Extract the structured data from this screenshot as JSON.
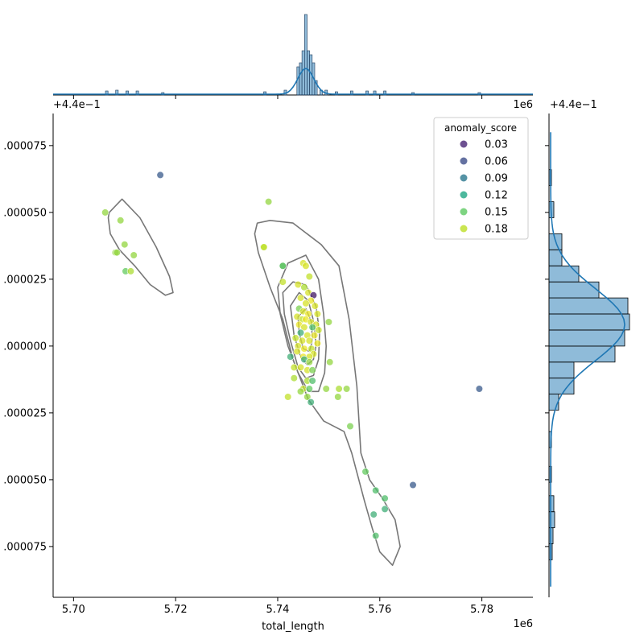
{
  "chart_data": {
    "type": "scatter",
    "xlabel": "total_length",
    "ylabel": "",
    "x_offset_label": "1e6",
    "y_offset_label": "+4.4e−1",
    "xlim": [
      5.696,
      5.79
    ],
    "ylim": [
      -9.4e-05,
      8.7e-05
    ],
    "x_ticks": [
      5.7,
      5.72,
      5.74,
      5.76,
      5.78
    ],
    "x_tick_labels": [
      "5.70",
      "5.72",
      "5.74",
      "5.76",
      "5.78"
    ],
    "y_ticks": [
      7.5e-05,
      5e-05,
      2.5e-05,
      0.0,
      -2.5e-05,
      -5e-05,
      -7.5e-05
    ],
    "y_tick_labels": [
      ".000075",
      ".000050",
      ".000025",
      ".000000",
      ".000025",
      ".000050",
      ".000075"
    ],
    "legend": {
      "title": "anomaly_score",
      "placement": "top-right",
      "entries": [
        "0.03",
        "0.06",
        "0.09",
        "0.12",
        "0.15",
        "0.18"
      ],
      "colors": [
        "#482576",
        "#3d4e8a",
        "#2a788e",
        "#21a685",
        "#5ec962",
        "#bddf26"
      ]
    },
    "grid": false,
    "marginal_x": {
      "type": "histogram+kde",
      "note": "dense spike near 5.745, sparse tails",
      "bins": [
        [
          5.7065,
          0.05
        ],
        [
          5.7085,
          0.06
        ],
        [
          5.7105,
          0.05
        ],
        [
          5.7125,
          0.05
        ],
        [
          5.7175,
          0.03
        ],
        [
          5.7375,
          0.04
        ],
        [
          5.7415,
          0.06
        ],
        [
          5.744,
          0.35
        ],
        [
          5.7445,
          0.4
        ],
        [
          5.745,
          0.55
        ],
        [
          5.7455,
          1.0
        ],
        [
          5.746,
          0.55
        ],
        [
          5.7465,
          0.5
        ],
        [
          5.747,
          0.4
        ],
        [
          5.7475,
          0.18
        ],
        [
          5.7485,
          0.06
        ],
        [
          5.7495,
          0.06
        ],
        [
          5.7515,
          0.04
        ],
        [
          5.7545,
          0.05
        ],
        [
          5.7575,
          0.05
        ],
        [
          5.759,
          0.05
        ],
        [
          5.761,
          0.05
        ],
        [
          5.7665,
          0.03
        ],
        [
          5.7795,
          0.03
        ]
      ]
    },
    "marginal_y": {
      "type": "histogram+kde",
      "bins": [
        [
          -7.7e-05,
          0.04
        ],
        [
          -7.1e-05,
          0.05
        ],
        [
          -6.5e-05,
          0.07
        ],
        [
          -5.9e-05,
          0.06
        ],
        [
          -4.8e-05,
          0.03
        ],
        [
          -3.5e-05,
          0.03
        ],
        [
          -2.1e-05,
          0.12
        ],
        [
          -1.5e-05,
          0.31
        ],
        [
          -9e-06,
          0.31
        ],
        [
          -3e-06,
          0.82
        ],
        [
          3e-06,
          0.94
        ],
        [
          9e-06,
          1.0
        ],
        [
          1.5e-05,
          0.98
        ],
        [
          2.1e-05,
          0.62
        ],
        [
          2.7e-05,
          0.37
        ],
        [
          3.3e-05,
          0.16
        ],
        [
          3.9e-05,
          0.16
        ],
        [
          5.1e-05,
          0.06
        ],
        [
          6.3e-05,
          0.03
        ]
      ]
    },
    "kde_contours": [
      [
        [
          5.707,
          5e-05
        ],
        [
          5.7095,
          5.5e-05
        ],
        [
          5.713,
          4.8e-05
        ],
        [
          5.7162,
          3.7e-05
        ],
        [
          5.7188,
          2.6e-05
        ],
        [
          5.7195,
          2e-05
        ],
        [
          5.718,
          1.9e-05
        ],
        [
          5.715,
          2.3e-05
        ],
        [
          5.712,
          3e-05
        ],
        [
          5.709,
          3.6e-05
        ],
        [
          5.7072,
          4.2e-05
        ],
        [
          5.7068,
          4.8e-05
        ]
      ],
      [
        [
          5.7355,
          4.2e-05
        ],
        [
          5.736,
          4.6e-05
        ],
        [
          5.7385,
          4.7e-05
        ],
        [
          5.743,
          4.6e-05
        ],
        [
          5.7485,
          3.8e-05
        ],
        [
          5.752,
          3e-05
        ],
        [
          5.754,
          1e-05
        ],
        [
          5.7555,
          -1.5e-05
        ],
        [
          5.7563,
          -4e-05
        ],
        [
          5.758,
          -5e-05
        ],
        [
          5.7605,
          -5.7e-05
        ],
        [
          5.763,
          -6.5e-05
        ],
        [
          5.764,
          -7.5e-05
        ],
        [
          5.7625,
          -8.2e-05
        ],
        [
          5.76,
          -7.7e-05
        ],
        [
          5.7585,
          -6.8e-05
        ],
        [
          5.757,
          -5.8e-05
        ],
        [
          5.7545,
          -4e-05
        ],
        [
          5.753,
          -3.2e-05
        ],
        [
          5.749,
          -2.8e-05
        ],
        [
          5.746,
          -2e-05
        ],
        [
          5.743,
          -5e-06
        ],
        [
          5.741,
          1e-05
        ],
        [
          5.7385,
          2.2e-05
        ],
        [
          5.7362,
          3.5e-05
        ]
      ],
      [
        [
          5.74,
          2.2e-05
        ],
        [
          5.742,
          3.1e-05
        ],
        [
          5.7455,
          3.4e-05
        ],
        [
          5.748,
          2.5e-05
        ],
        [
          5.749,
          1.2e-05
        ],
        [
          5.7495,
          0.0
        ],
        [
          5.7492,
          -1e-05
        ],
        [
          5.748,
          -1.7e-05
        ],
        [
          5.746,
          -1.7e-05
        ],
        [
          5.744,
          -1e-05
        ],
        [
          5.742,
          0.0
        ],
        [
          5.7405,
          1.2e-05
        ]
      ],
      [
        [
          5.741,
          2e-05
        ],
        [
          5.743,
          2.4e-05
        ],
        [
          5.7455,
          2.3e-05
        ],
        [
          5.7475,
          1.5e-05
        ],
        [
          5.7482,
          5e-06
        ],
        [
          5.748,
          -5e-06
        ],
        [
          5.747,
          -1.1e-05
        ],
        [
          5.7455,
          -1.2e-05
        ],
        [
          5.744,
          -8e-06
        ],
        [
          5.7425,
          2e-06
        ],
        [
          5.7413,
          1.2e-05
        ]
      ],
      [
        [
          5.7425,
          1.5e-05
        ],
        [
          5.7442,
          2e-05
        ],
        [
          5.746,
          1.7e-05
        ],
        [
          5.7472,
          8e-06
        ],
        [
          5.7475,
          0.0
        ],
        [
          5.747,
          -5e-06
        ],
        [
          5.7458,
          -7e-06
        ],
        [
          5.7445,
          -4e-06
        ],
        [
          5.7432,
          4e-06
        ]
      ],
      [
        [
          5.744,
          1.1e-05
        ],
        [
          5.7455,
          1.4e-05
        ],
        [
          5.7466,
          9e-06
        ],
        [
          5.7468,
          2e-06
        ],
        [
          5.7462,
          -2e-06
        ],
        [
          5.745,
          -1e-06
        ],
        [
          5.7442,
          5e-06
        ]
      ]
    ],
    "points": [
      {
        "x": 5.7062,
        "y": 5e-05,
        "s": 0.15
      },
      {
        "x": 5.7092,
        "y": 4.7e-05,
        "s": 0.15
      },
      {
        "x": 5.71,
        "y": 3.8e-05,
        "s": 0.15
      },
      {
        "x": 5.7082,
        "y": 3.5e-05,
        "s": 0.15
      },
      {
        "x": 5.7085,
        "y": 3.5e-05,
        "s": 0.15
      },
      {
        "x": 5.7118,
        "y": 3.4e-05,
        "s": 0.15
      },
      {
        "x": 5.7102,
        "y": 2.8e-05,
        "s": 0.13
      },
      {
        "x": 5.7112,
        "y": 2.8e-05,
        "s": 0.16
      },
      {
        "x": 5.717,
        "y": 6.4e-05,
        "s": 0.06
      },
      {
        "x": 5.7382,
        "y": 5.4e-05,
        "s": 0.15
      },
      {
        "x": 5.7372,
        "y": 3.7e-05,
        "s": 0.16
      },
      {
        "x": 5.7373,
        "y": 3.7e-05,
        "s": 0.17
      },
      {
        "x": 5.741,
        "y": 3e-05,
        "s": 0.15
      },
      {
        "x": 5.741,
        "y": 2.4e-05,
        "s": 0.17
      },
      {
        "x": 5.741,
        "y": 3e-05,
        "s": 0.12
      },
      {
        "x": 5.745,
        "y": 3.1e-05,
        "s": 0.18
      },
      {
        "x": 5.7455,
        "y": 3e-05,
        "s": 0.18
      },
      {
        "x": 5.7462,
        "y": 2.6e-05,
        "s": 0.17
      },
      {
        "x": 5.744,
        "y": 2.3e-05,
        "s": 0.18
      },
      {
        "x": 5.7452,
        "y": 2.2e-05,
        "s": 0.16
      },
      {
        "x": 5.746,
        "y": 2e-05,
        "s": 0.18
      },
      {
        "x": 5.747,
        "y": 1.9e-05,
        "s": 0.03
      },
      {
        "x": 5.7445,
        "y": 1.8e-05,
        "s": 0.18
      },
      {
        "x": 5.7465,
        "y": 1.7e-05,
        "s": 0.19
      },
      {
        "x": 5.7455,
        "y": 1.6e-05,
        "s": 0.18
      },
      {
        "x": 5.7473,
        "y": 1.5e-05,
        "s": 0.18
      },
      {
        "x": 5.7442,
        "y": 1.4e-05,
        "s": 0.14
      },
      {
        "x": 5.745,
        "y": 1.3e-05,
        "s": 0.18
      },
      {
        "x": 5.746,
        "y": 1.2e-05,
        "s": 0.19
      },
      {
        "x": 5.7478,
        "y": 1.2e-05,
        "s": 0.18
      },
      {
        "x": 5.7438,
        "y": 1.1e-05,
        "s": 0.18
      },
      {
        "x": 5.7448,
        "y": 1e-05,
        "s": 0.17
      },
      {
        "x": 5.7455,
        "y": 1e-05,
        "s": 0.19
      },
      {
        "x": 5.7465,
        "y": 9e-06,
        "s": 0.18
      },
      {
        "x": 5.7475,
        "y": 8e-06,
        "s": 0.18
      },
      {
        "x": 5.75,
        "y": 9e-06,
        "s": 0.15
      },
      {
        "x": 5.7442,
        "y": 8e-06,
        "s": 0.19
      },
      {
        "x": 5.7452,
        "y": 7e-06,
        "s": 0.18
      },
      {
        "x": 5.7468,
        "y": 7e-06,
        "s": 0.12
      },
      {
        "x": 5.748,
        "y": 6e-06,
        "s": 0.17
      },
      {
        "x": 5.7445,
        "y": 5e-06,
        "s": 0.11
      },
      {
        "x": 5.7458,
        "y": 4e-06,
        "s": 0.18
      },
      {
        "x": 5.7472,
        "y": 4e-06,
        "s": 0.19
      },
      {
        "x": 5.7435,
        "y": 3e-06,
        "s": 0.17
      },
      {
        "x": 5.7448,
        "y": 2e-06,
        "s": 0.18
      },
      {
        "x": 5.7462,
        "y": 2e-06,
        "s": 0.18
      },
      {
        "x": 5.7478,
        "y": 1e-06,
        "s": 0.19
      },
      {
        "x": 5.744,
        "y": 0.0,
        "s": 0.18
      },
      {
        "x": 5.7452,
        "y": -1e-06,
        "s": 0.19
      },
      {
        "x": 5.7466,
        "y": -1e-06,
        "s": 0.17
      },
      {
        "x": 5.7438,
        "y": -2e-06,
        "s": 0.18
      },
      {
        "x": 5.747,
        "y": -3e-06,
        "s": 0.18
      },
      {
        "x": 5.745,
        "y": -4e-06,
        "s": 0.19
      },
      {
        "x": 5.7462,
        "y": -4e-06,
        "s": 0.18
      },
      {
        "x": 5.7425,
        "y": -4e-06,
        "s": 0.11
      },
      {
        "x": 5.7452,
        "y": -5e-06,
        "s": 0.11
      },
      {
        "x": 5.7462,
        "y": -6e-06,
        "s": 0.15
      },
      {
        "x": 5.7502,
        "y": -6e-06,
        "s": 0.15
      },
      {
        "x": 5.7432,
        "y": -8e-06,
        "s": 0.17
      },
      {
        "x": 5.7445,
        "y": -8e-06,
        "s": 0.18
      },
      {
        "x": 5.7458,
        "y": -9e-06,
        "s": 0.18
      },
      {
        "x": 5.7468,
        "y": -9e-06,
        "s": 0.14
      },
      {
        "x": 5.7432,
        "y": -1.2e-05,
        "s": 0.16
      },
      {
        "x": 5.7458,
        "y": -1.3e-05,
        "s": 0.16
      },
      {
        "x": 5.7468,
        "y": -1.3e-05,
        "s": 0.12
      },
      {
        "x": 5.745,
        "y": -1.6e-05,
        "s": 0.17
      },
      {
        "x": 5.7462,
        "y": -1.6e-05,
        "s": 0.13
      },
      {
        "x": 5.7495,
        "y": -1.6e-05,
        "s": 0.15
      },
      {
        "x": 5.752,
        "y": -1.6e-05,
        "s": 0.16
      },
      {
        "x": 5.7535,
        "y": -1.6e-05,
        "s": 0.15
      },
      {
        "x": 5.7445,
        "y": -1.7e-05,
        "s": 0.15
      },
      {
        "x": 5.742,
        "y": -1.9e-05,
        "s": 0.17
      },
      {
        "x": 5.7458,
        "y": -1.9e-05,
        "s": 0.15
      },
      {
        "x": 5.7465,
        "y": -2.1e-05,
        "s": 0.11
      },
      {
        "x": 5.7518,
        "y": -1.9e-05,
        "s": 0.15
      },
      {
        "x": 5.7542,
        "y": -3e-05,
        "s": 0.14
      },
      {
        "x": 5.7572,
        "y": -4.7e-05,
        "s": 0.13
      },
      {
        "x": 5.7665,
        "y": -5.2e-05,
        "s": 0.06
      },
      {
        "x": 5.7592,
        "y": -5.4e-05,
        "s": 0.12
      },
      {
        "x": 5.761,
        "y": -5.7e-05,
        "s": 0.12
      },
      {
        "x": 5.761,
        "y": -6.1e-05,
        "s": 0.11
      },
      {
        "x": 5.7588,
        "y": -6.3e-05,
        "s": 0.11
      },
      {
        "x": 5.7592,
        "y": -7.1e-05,
        "s": 0.12
      },
      {
        "x": 5.7795,
        "y": -1.6e-05,
        "s": 0.06
      }
    ]
  }
}
